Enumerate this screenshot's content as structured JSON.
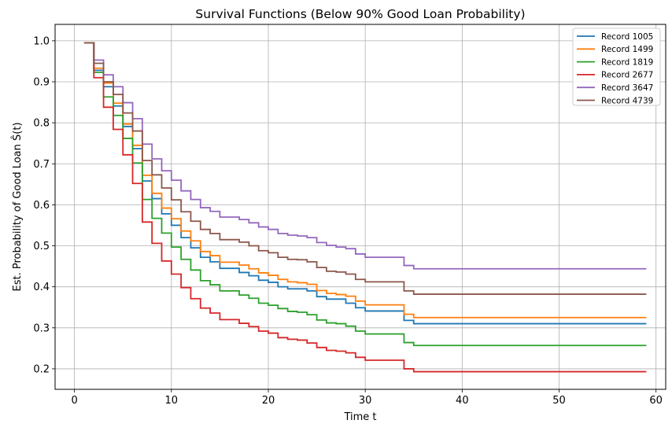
{
  "chart_data": {
    "type": "line",
    "step": "post",
    "title": "Survival Functions (Below 90% Good Loan Probability)",
    "xlabel": "Time t",
    "ylabel": "Est. Probability of Good Loan Ŝ(t)",
    "xlim": [
      -2,
      61
    ],
    "ylim": [
      0.15,
      1.04
    ],
    "xticks": [
      0,
      10,
      20,
      30,
      40,
      50,
      60
    ],
    "yticks": [
      0.2,
      0.3,
      0.4,
      0.5,
      0.6,
      0.7,
      0.8,
      0.9,
      1.0
    ],
    "grid": true,
    "legend_position": "top-right",
    "x": [
      1,
      2,
      3,
      4,
      5,
      6,
      7,
      8,
      9,
      10,
      11,
      12,
      13,
      14,
      15,
      16,
      17,
      18,
      19,
      20,
      21,
      22,
      23,
      24,
      25,
      26,
      27,
      28,
      29,
      30,
      31,
      32,
      33,
      34,
      35,
      59
    ],
    "series": [
      {
        "name": "Record 1005",
        "color": "#1f77b4",
        "values": [
          0.995,
          0.928,
          0.888,
          0.841,
          0.791,
          0.737,
          0.658,
          0.615,
          0.578,
          0.55,
          0.52,
          0.495,
          0.472,
          0.461,
          0.445,
          0.445,
          0.435,
          0.427,
          0.416,
          0.411,
          0.4,
          0.395,
          0.395,
          0.39,
          0.376,
          0.37,
          0.37,
          0.36,
          0.349,
          0.341,
          0.341,
          0.341,
          0.341,
          0.318,
          0.31,
          0.31
        ]
      },
      {
        "name": "Record 1499",
        "color": "#ff7f0e",
        "values": [
          0.995,
          0.933,
          0.897,
          0.848,
          0.797,
          0.745,
          0.672,
          0.628,
          0.592,
          0.566,
          0.536,
          0.512,
          0.486,
          0.476,
          0.46,
          0.46,
          0.453,
          0.444,
          0.434,
          0.428,
          0.418,
          0.412,
          0.41,
          0.406,
          0.391,
          0.384,
          0.381,
          0.377,
          0.365,
          0.356,
          0.356,
          0.356,
          0.356,
          0.333,
          0.325,
          0.325
        ]
      },
      {
        "name": "Record 1819",
        "color": "#2ca02c",
        "values": [
          0.995,
          0.923,
          0.863,
          0.818,
          0.762,
          0.702,
          0.613,
          0.567,
          0.531,
          0.497,
          0.467,
          0.441,
          0.415,
          0.405,
          0.39,
          0.39,
          0.38,
          0.372,
          0.36,
          0.355,
          0.347,
          0.34,
          0.338,
          0.332,
          0.319,
          0.312,
          0.31,
          0.304,
          0.292,
          0.285,
          0.285,
          0.285,
          0.285,
          0.264,
          0.257,
          0.257
        ]
      },
      {
        "name": "Record 2677",
        "color": "#d62728",
        "values": [
          0.995,
          0.91,
          0.838,
          0.784,
          0.722,
          0.652,
          0.558,
          0.506,
          0.463,
          0.431,
          0.398,
          0.371,
          0.348,
          0.336,
          0.32,
          0.32,
          0.311,
          0.303,
          0.292,
          0.287,
          0.276,
          0.272,
          0.27,
          0.263,
          0.252,
          0.245,
          0.243,
          0.239,
          0.228,
          0.221,
          0.221,
          0.221,
          0.221,
          0.2,
          0.193,
          0.193
        ]
      },
      {
        "name": "Record 3647",
        "color": "#9467bd",
        "values": [
          0.995,
          0.953,
          0.917,
          0.888,
          0.849,
          0.81,
          0.748,
          0.712,
          0.683,
          0.66,
          0.634,
          0.613,
          0.593,
          0.584,
          0.57,
          0.57,
          0.564,
          0.556,
          0.546,
          0.54,
          0.53,
          0.526,
          0.524,
          0.52,
          0.508,
          0.501,
          0.497,
          0.493,
          0.48,
          0.472,
          0.472,
          0.472,
          0.472,
          0.452,
          0.444,
          0.444
        ]
      },
      {
        "name": "Record 4739",
        "color": "#8c564b",
        "values": [
          0.995,
          0.945,
          0.9,
          0.869,
          0.824,
          0.78,
          0.708,
          0.673,
          0.641,
          0.612,
          0.583,
          0.56,
          0.54,
          0.53,
          0.515,
          0.515,
          0.509,
          0.5,
          0.488,
          0.483,
          0.472,
          0.467,
          0.466,
          0.461,
          0.447,
          0.438,
          0.436,
          0.431,
          0.418,
          0.412,
          0.412,
          0.412,
          0.412,
          0.39,
          0.382,
          0.382
        ]
      }
    ]
  }
}
